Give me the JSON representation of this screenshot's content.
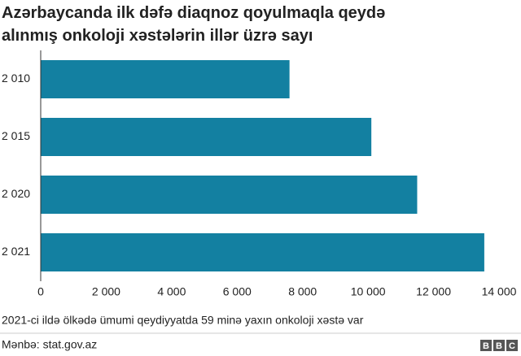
{
  "chart_data": {
    "type": "bar",
    "orientation": "horizontal",
    "title": "Azərbaycanda ilk dəfə diaqnoz qoyulmaqla qeydə alınmış onkoloji xəstələrin illər üzrə sayı",
    "categories": [
      "2 010",
      "2 015",
      "2 020",
      "2 021"
    ],
    "values": [
      7600,
      10100,
      11500,
      13550
    ],
    "color": "#1380a1",
    "xlim": [
      0,
      14000
    ],
    "xticks": [
      0,
      {
        "value": 2000,
        "label": "2 000"
      },
      {
        "value": 4000,
        "label": "4 000"
      },
      {
        "value": 6000,
        "label": "6 000"
      },
      {
        "value": 8000,
        "label": "8 000"
      },
      {
        "value": 10000,
        "label": "10 000"
      },
      {
        "value": 12000,
        "label": "12 000"
      },
      {
        "value": 14000,
        "label": "14 000"
      }
    ],
    "grid": false,
    "note": "2021-ci ildə ölkədə ümumi qeydiyyatda 59 minə yaxın onkoloji xəstə var",
    "source": "Mənbə: stat.gov.az",
    "logo": [
      "B",
      "B",
      "C"
    ]
  }
}
